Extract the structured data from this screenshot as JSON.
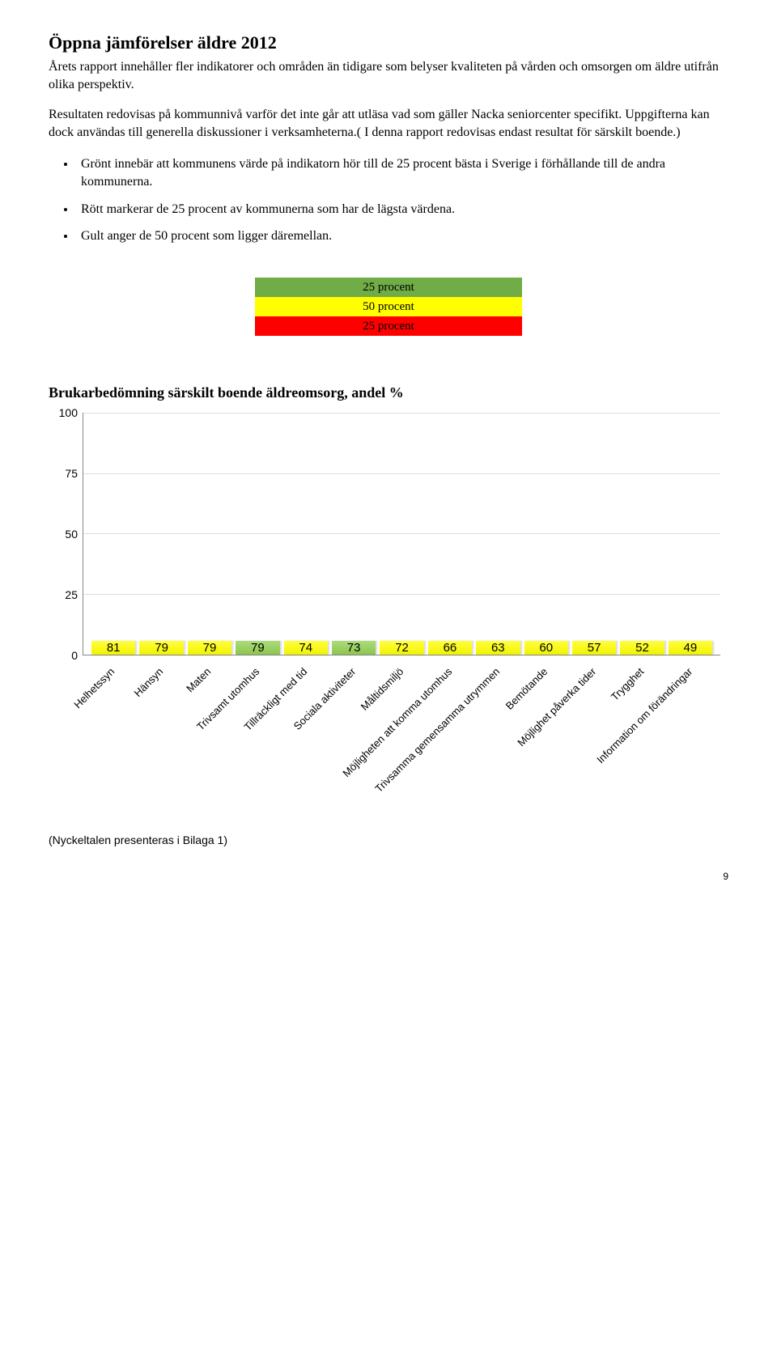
{
  "heading": "Öppna jämförelser äldre 2012",
  "intro1": "Årets rapport innehåller fler indikatorer och områden än tidigare som belyser kvaliteten på vården och omsorgen om äldre utifrån olika perspektiv.",
  "intro2": "Resultaten redovisas på kommunnivå varför det inte går att utläsa vad som gäller Nacka seniorcenter specifikt. Uppgifterna kan dock användas till generella diskussioner i verksamheterna.( I denna rapport redovisas endast resultat för särskilt boende.)",
  "bullets": [
    "Grönt innebär att kommunens värde på indikatorn hör till de 25 procent bästa i Sverige i förhållande till de andra kommunerna.",
    "Rött markerar de 25 procent av kommunerna som har de lägsta värdena.",
    "Gult anger de 50 procent som ligger däremellan."
  ],
  "legend": {
    "rows": [
      {
        "label": "25 procent",
        "color": "#70ad47"
      },
      {
        "label": "50 procent",
        "color": "#ffff00"
      },
      {
        "label": "25 procent",
        "color": "#ff0000"
      }
    ]
  },
  "subheading": "Brukarbedömning särskilt boende äldreomsorg, andel %",
  "chart": {
    "type": "bar",
    "ymax": 100,
    "yticks": [
      0,
      25,
      50,
      75,
      100
    ],
    "tick_fontsize": 14,
    "value_fontsize": 15,
    "label_fontsize": 13,
    "highlight_color": "#92d050",
    "default_color": "#ffff00",
    "grid_color": "#dddddd",
    "axis_color": "#888888",
    "bars": [
      {
        "label": "Helhetssyn",
        "value": 81,
        "color": "#ffff00"
      },
      {
        "label": "Hänsyn",
        "value": 79,
        "color": "#ffff00"
      },
      {
        "label": "Maten",
        "value": 79,
        "color": "#ffff00"
      },
      {
        "label": "Trivsamt utomhus",
        "value": 79,
        "color": "#92d050"
      },
      {
        "label": "Tillräckligt med tid",
        "value": 74,
        "color": "#ffff00"
      },
      {
        "label": "Sociala aktiviteter",
        "value": 73,
        "color": "#92d050"
      },
      {
        "label": "Måltidsmiljö",
        "value": 72,
        "color": "#ffff00"
      },
      {
        "label": "Möjligheten att komma utomhus",
        "value": 66,
        "color": "#ffff00"
      },
      {
        "label": "Trivsamma gemensamma utrymmen",
        "value": 63,
        "color": "#ffff00"
      },
      {
        "label": "Bemötande",
        "value": 60,
        "color": "#ffff00"
      },
      {
        "label": "Möjlighet påverka tider",
        "value": 57,
        "color": "#ffff00"
      },
      {
        "label": "Trygghet",
        "value": 52,
        "color": "#ffff00"
      },
      {
        "label": "Information om förändringar",
        "value": 49,
        "color": "#ffff00"
      }
    ]
  },
  "footer_note": "(Nyckeltalen presenteras i Bilaga 1)",
  "page_number": "9"
}
